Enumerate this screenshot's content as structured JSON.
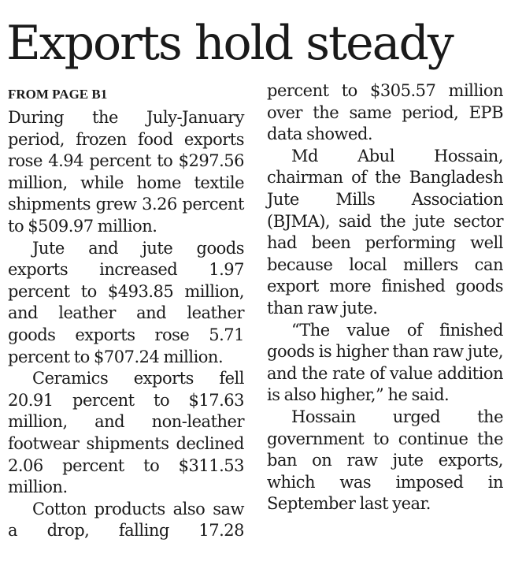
{
  "headline": "Exports hold steady",
  "kicker": "FROM PAGE B1",
  "left_column": [
    "During the July-January period, frozen food exports rose 4.94 percent to $297.56 million, while home textile shipments grew 3.26 percent to $509.97 million.",
    "Jute and jute goods exports increased 1.97 percent to $493.85 million, and leather and leather goods exports rose 5.71 percent to $707.24 million.",
    "Ceramics exports fell 20.91 percent to $17.63 million, and non-leather footwear shipments declined 2.06 percent to $311.53 million.",
    "Cotton products also saw a drop, falling 17.28"
  ],
  "right_column": [
    "percent to $305.57 million over the same period, EPB data showed.",
    "Md Abul Hossain, chairman of the Bangladesh Jute Mills Association (BJMA), said the jute sector had been performing well because local millers can export more finished goods than raw jute.",
    "“The value of finished goods is higher than raw jute, and the rate of value addition is also higher,” he said.",
    "Hossain urged the government to continue the ban on raw jute exports, which was imposed in September last year."
  ]
}
